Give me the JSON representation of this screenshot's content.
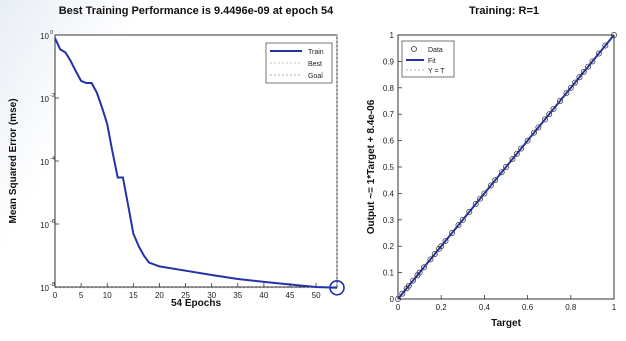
{
  "chart_data": [
    {
      "type": "line",
      "title": "Best Training Performance is 9.4496e-09 at epoch 54",
      "xlabel": "54 Epochs",
      "ylabel": "Mean Squared Error  (mse)",
      "y_scale": "log",
      "xlim": [
        0,
        54
      ],
      "ylim": [
        1e-08,
        1
      ],
      "x_ticks": [
        0,
        5,
        10,
        15,
        20,
        25,
        30,
        35,
        40,
        45,
        50
      ],
      "y_tick_bases": [
        "10",
        "10",
        "10",
        "10",
        "10"
      ],
      "y_tick_exps": [
        "0",
        "-2",
        "-4",
        "-6",
        "-8"
      ],
      "y_tick_values": [
        1,
        0.01,
        0.0001,
        1e-06,
        1e-08
      ],
      "legend": {
        "position": "top-right",
        "entries": [
          "Train",
          "Best",
          "Goal"
        ]
      },
      "series": [
        {
          "name": "Train",
          "color": "#2233aa",
          "x": [
            0,
            1,
            2,
            3,
            4,
            5,
            6,
            7,
            8,
            9,
            10,
            11,
            12,
            13,
            14,
            15,
            16,
            17,
            18,
            20,
            25,
            30,
            35,
            40,
            45,
            50,
            54
          ],
          "y": [
            0.8,
            0.35,
            0.28,
            0.15,
            0.07,
            0.035,
            0.03,
            0.03,
            0.015,
            0.005,
            0.0015,
            0.0002,
            3e-05,
            3e-05,
            4e-06,
            5e-07,
            2e-07,
            1e-07,
            6e-08,
            4.5e-08,
            3.3e-08,
            2.4e-08,
            1.8e-08,
            1.45e-08,
            1.2e-08,
            1e-08,
            9.45e-09
          ]
        }
      ],
      "best": {
        "x": 54,
        "y": 9.4496e-09,
        "color": "#2233aa"
      },
      "best_line_color": "#aaaaaa",
      "goal_line_color": "#999999"
    },
    {
      "type": "scatter",
      "title": "Training: R=1",
      "xlabel": "Target",
      "ylabel": "Output ~= 1*Target + 8.4e-06",
      "xlim": [
        0,
        1
      ],
      "ylim": [
        0,
        1
      ],
      "x_ticks": [
        "0",
        "0.2",
        "0.4",
        "0.6",
        "0.8",
        "1"
      ],
      "y_ticks": [
        "0",
        "0.1",
        "0.2",
        "0.3",
        "0.4",
        "0.5",
        "0.6",
        "0.7",
        "0.8",
        "0.9",
        "1"
      ],
      "legend": {
        "position": "top-left",
        "entries": [
          "Data",
          "Fit",
          "Y = T"
        ]
      },
      "series": [
        {
          "name": "Data",
          "x": [
            0,
            0.02,
            0.04,
            0.05,
            0.07,
            0.09,
            0.1,
            0.12,
            0.15,
            0.17,
            0.19,
            0.2,
            0.22,
            0.25,
            0.28,
            0.3,
            0.33,
            0.36,
            0.38,
            0.4,
            0.43,
            0.45,
            0.48,
            0.5,
            0.53,
            0.55,
            0.57,
            0.6,
            0.63,
            0.65,
            0.68,
            0.7,
            0.72,
            0.75,
            0.78,
            0.8,
            0.82,
            0.84,
            0.86,
            0.88,
            0.9,
            0.93,
            0.96,
            1
          ],
          "y": [
            0,
            0.02,
            0.04,
            0.05,
            0.07,
            0.09,
            0.1,
            0.12,
            0.15,
            0.17,
            0.19,
            0.2,
            0.22,
            0.25,
            0.28,
            0.3,
            0.33,
            0.36,
            0.38,
            0.4,
            0.43,
            0.45,
            0.48,
            0.5,
            0.53,
            0.55,
            0.57,
            0.6,
            0.63,
            0.65,
            0.68,
            0.7,
            0.72,
            0.75,
            0.78,
            0.8,
            0.82,
            0.84,
            0.86,
            0.88,
            0.9,
            0.93,
            0.96,
            1
          ]
        },
        {
          "name": "Fit",
          "color": "#2233aa",
          "x": [
            0,
            1
          ],
          "y": [
            0,
            1
          ]
        },
        {
          "name": "Y = T",
          "color": "#999999",
          "x": [
            0,
            1
          ],
          "y": [
            0,
            1
          ]
        }
      ]
    }
  ]
}
